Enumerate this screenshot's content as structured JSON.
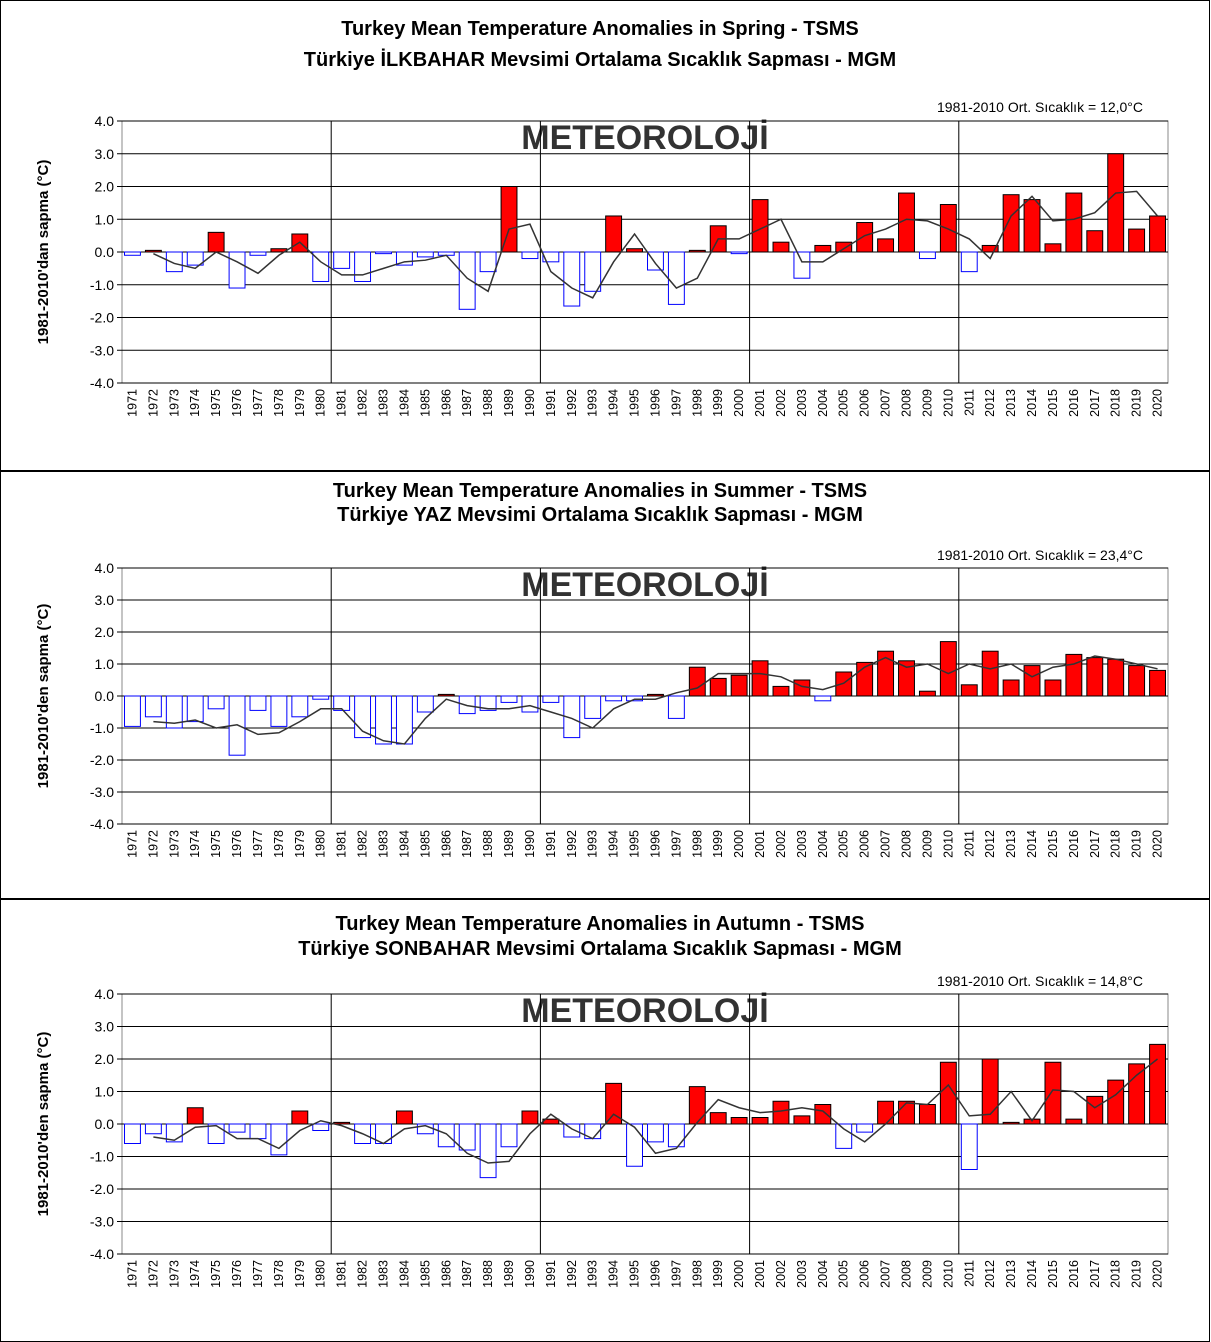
{
  "chart_data": [
    {
      "type": "bar",
      "title": "Turkey Mean Temperature Anomalies  in Spring - TSMS",
      "subtitle": "Türkiye İLKBAHAR Mevsimi Ortalama Sıcaklık Sapması - MGM",
      "annotation": "1981-2010 Ort. Sıcaklık = 12,0°C",
      "y_label": "1981-2010'dan sapma (°C)",
      "watermark": "METEOROLOJİ",
      "categories": [
        "1971",
        "1972",
        "1973",
        "1974",
        "1975",
        "1976",
        "1977",
        "1978",
        "1979",
        "1980",
        "1981",
        "1982",
        "1983",
        "1984",
        "1985",
        "1986",
        "1987",
        "1988",
        "1989",
        "1990",
        "1991",
        "1992",
        "1993",
        "1994",
        "1995",
        "1996",
        "1997",
        "1998",
        "1999",
        "2000",
        "2001",
        "2002",
        "2003",
        "2004",
        "2005",
        "2006",
        "2007",
        "2008",
        "2009",
        "2010",
        "2011",
        "2012",
        "2013",
        "2014",
        "2015",
        "2016",
        "2017",
        "2018",
        "2019",
        "2020"
      ],
      "series": [
        {
          "type": "bar",
          "color_positive": "#ff0000",
          "color_negative": "#ffffff",
          "edge_negative": "#0000ff",
          "values": [
            -0.1,
            0.05,
            -0.6,
            -0.4,
            0.6,
            -1.1,
            -0.1,
            0.1,
            0.55,
            -0.9,
            -0.5,
            -0.9,
            -0.05,
            -0.4,
            -0.15,
            -0.1,
            -1.75,
            -0.6,
            2.0,
            -0.2,
            -0.3,
            -1.65,
            -1.2,
            1.1,
            0.1,
            -0.55,
            -1.6,
            0.05,
            0.8,
            -0.05,
            1.6,
            0.3,
            -0.8,
            0.2,
            0.3,
            0.9,
            0.4,
            1.8,
            -0.2,
            1.45,
            -0.6,
            0.2,
            1.75,
            1.6,
            0.25,
            1.8,
            0.65,
            3.0,
            0.7,
            1.1
          ]
        },
        {
          "type": "line",
          "color": "#333333",
          "values": [
            null,
            -0.05,
            -0.35,
            -0.5,
            0.0,
            -0.3,
            -0.65,
            -0.1,
            0.3,
            -0.3,
            -0.7,
            -0.7,
            -0.5,
            -0.3,
            -0.25,
            -0.1,
            -0.8,
            -1.2,
            0.7,
            0.85,
            -0.6,
            -1.1,
            -1.4,
            -0.3,
            0.55,
            -0.35,
            -1.1,
            -0.8,
            0.4,
            0.4,
            0.7,
            1.0,
            -0.3,
            -0.3,
            0.1,
            0.5,
            0.7,
            1.0,
            0.95,
            0.7,
            0.4,
            -0.2,
            1.1,
            1.7,
            0.95,
            1.0,
            1.2,
            1.8,
            1.85,
            1.1
          ]
        }
      ],
      "ylim": [
        -4,
        4
      ],
      "yticks": [
        {
          "value": -4,
          "label": "-4.0"
        },
        {
          "value": -3,
          "label": "-3.0"
        },
        {
          "value": -2,
          "label": "-2.0"
        },
        {
          "value": -1,
          "label": "-1.0"
        },
        {
          "value": 0,
          "label": "0.0"
        },
        {
          "value": 1,
          "label": "1.0"
        },
        {
          "value": 2,
          "label": "2.0"
        },
        {
          "value": 3,
          "label": "3.0"
        },
        {
          "value": 4,
          "label": "4.0"
        }
      ],
      "grid": true
    },
    {
      "type": "bar",
      "title": "Turkey Mean Temperature Anomalies  in Summer  - TSMS",
      "subtitle": "Türkiye  YAZ  Mevsimi Ortalama Sıcaklık Sapması  - MGM",
      "annotation": "1981-2010 Ort.  Sıcaklık = 23,4°C",
      "y_label": "1981-2010'den sapma (°C)",
      "watermark": "METEOROLOJİ",
      "categories": [
        "1971",
        "1972",
        "1973",
        "1974",
        "1975",
        "1976",
        "1977",
        "1978",
        "1979",
        "1980",
        "1981",
        "1982",
        "1983",
        "1984",
        "1985",
        "1986",
        "1987",
        "1988",
        "1989",
        "1990",
        "1991",
        "1992",
        "1993",
        "1994",
        "1995",
        "1996",
        "1997",
        "1998",
        "1999",
        "2000",
        "2001",
        "2002",
        "2003",
        "2004",
        "2005",
        "2006",
        "2007",
        "2008",
        "2009",
        "2010",
        "2011",
        "2012",
        "2013",
        "2014",
        "2015",
        "2016",
        "2017",
        "2018",
        "2019",
        "2020"
      ],
      "series": [
        {
          "type": "bar",
          "color_positive": "#ff0000",
          "color_negative": "#ffffff",
          "edge_negative": "#0000ff",
          "values": [
            -0.95,
            -0.65,
            -1.0,
            -0.8,
            -0.4,
            -1.85,
            -0.45,
            -0.95,
            -0.65,
            -0.1,
            -0.45,
            -1.3,
            -1.5,
            -1.5,
            -0.5,
            0.05,
            -0.55,
            -0.45,
            -0.2,
            -0.5,
            -0.2,
            -1.3,
            -0.7,
            -0.15,
            -0.15,
            0.05,
            -0.7,
            0.9,
            0.55,
            0.65,
            1.1,
            0.3,
            0.5,
            -0.15,
            0.75,
            1.05,
            1.4,
            1.1,
            0.15,
            1.7,
            0.35,
            1.4,
            0.5,
            0.95,
            0.5,
            1.3,
            1.2,
            1.15,
            0.95,
            0.8
          ]
        },
        {
          "type": "line",
          "color": "#333333",
          "values": [
            null,
            -0.8,
            -0.85,
            -0.75,
            -1.0,
            -0.9,
            -1.2,
            -1.15,
            -0.8,
            -0.4,
            -0.4,
            -1.1,
            -1.4,
            -1.5,
            -0.7,
            -0.1,
            -0.3,
            -0.4,
            -0.4,
            -0.3,
            -0.5,
            -0.7,
            -1.0,
            -0.4,
            -0.1,
            -0.1,
            0.1,
            0.25,
            0.7,
            0.7,
            0.7,
            0.6,
            0.3,
            0.2,
            0.4,
            0.9,
            1.2,
            0.9,
            1.0,
            0.7,
            1.0,
            0.85,
            1.0,
            0.6,
            0.9,
            1.0,
            1.25,
            1.15,
            1.0,
            0.85
          ]
        }
      ],
      "ylim": [
        -4,
        4
      ],
      "yticks": [
        {
          "value": -4,
          "label": "-4.0"
        },
        {
          "value": -3,
          "label": "-3.0"
        },
        {
          "value": -2,
          "label": "-2.0"
        },
        {
          "value": -1,
          "label": "-1.0"
        },
        {
          "value": 0,
          "label": "0.0"
        },
        {
          "value": 1,
          "label": "1.0"
        },
        {
          "value": 2,
          "label": "2.0"
        },
        {
          "value": 3,
          "label": "3.0"
        },
        {
          "value": 4,
          "label": "4.0"
        }
      ],
      "grid": true
    },
    {
      "type": "bar",
      "title": "Turkey Mean Temperature Anomalies  in Autumn   - TSMS",
      "subtitle": "Türkiye SONBAHAR Mevsimi Ortalama Sıcaklık Sapması  - MGM",
      "annotation": "1981-2010 Ort.  Sıcaklık = 14,8°C",
      "y_label": "1981-2010'den sapma (°C)",
      "watermark": "METEOROLOJİ",
      "categories": [
        "1971",
        "1972",
        "1973",
        "1974",
        "1975",
        "1976",
        "1977",
        "1978",
        "1979",
        "1980",
        "1981",
        "1982",
        "1983",
        "1984",
        "1985",
        "1986",
        "1987",
        "1988",
        "1989",
        "1990",
        "1991",
        "1992",
        "1993",
        "1994",
        "1995",
        "1996",
        "1997",
        "1998",
        "1999",
        "2000",
        "2001",
        "2002",
        "2003",
        "2004",
        "2005",
        "2006",
        "2007",
        "2008",
        "2009",
        "2010",
        "2011",
        "2012",
        "2013",
        "2014",
        "2015",
        "2016",
        "2017",
        "2018",
        "2019",
        "2020"
      ],
      "series": [
        {
          "type": "bar",
          "color_positive": "#ff0000",
          "color_negative": "#ffffff",
          "edge_negative": "#0000ff",
          "values": [
            -0.6,
            -0.3,
            -0.55,
            0.5,
            -0.6,
            -0.25,
            -0.45,
            -0.95,
            0.4,
            -0.2,
            0.05,
            -0.6,
            -0.6,
            0.4,
            -0.3,
            -0.7,
            -0.8,
            -1.65,
            -0.7,
            0.4,
            0.15,
            -0.4,
            -0.45,
            1.25,
            -1.3,
            -0.55,
            -0.7,
            1.15,
            0.35,
            0.2,
            0.2,
            0.7,
            0.25,
            0.6,
            -0.75,
            -0.25,
            0.7,
            0.7,
            0.6,
            1.9,
            -1.4,
            2.0,
            0.05,
            0.15,
            1.9,
            0.15,
            0.85,
            1.35,
            1.85,
            2.45
          ]
        },
        {
          "type": "line",
          "color": "#333333",
          "values": [
            null,
            -0.4,
            -0.5,
            -0.1,
            -0.05,
            -0.45,
            -0.45,
            -0.75,
            -0.2,
            0.1,
            -0.05,
            -0.3,
            -0.6,
            -0.15,
            -0.05,
            -0.3,
            -0.9,
            -1.2,
            -1.15,
            -0.3,
            0.3,
            -0.15,
            -0.45,
            0.3,
            -0.1,
            -0.9,
            -0.75,
            0.05,
            0.75,
            0.5,
            0.35,
            0.4,
            0.5,
            0.4,
            -0.15,
            -0.55,
            0.0,
            0.65,
            0.6,
            1.2,
            0.25,
            0.3,
            1.0,
            0.1,
            1.05,
            1.0,
            0.5,
            0.9,
            1.5,
            2.0
          ]
        }
      ],
      "ylim": [
        -4,
        4
      ],
      "yticks": [
        {
          "value": -4,
          "label": "-4.0"
        },
        {
          "value": -3,
          "label": "-3.0"
        },
        {
          "value": -2,
          "label": "-2.0"
        },
        {
          "value": -1,
          "label": "-1.0"
        },
        {
          "value": 0,
          "label": "0.0"
        },
        {
          "value": 1,
          "label": "1.0"
        },
        {
          "value": 2,
          "label": "2.0"
        },
        {
          "value": 3,
          "label": "3.0"
        },
        {
          "value": 4,
          "label": "4.0"
        }
      ],
      "grid": true
    }
  ]
}
